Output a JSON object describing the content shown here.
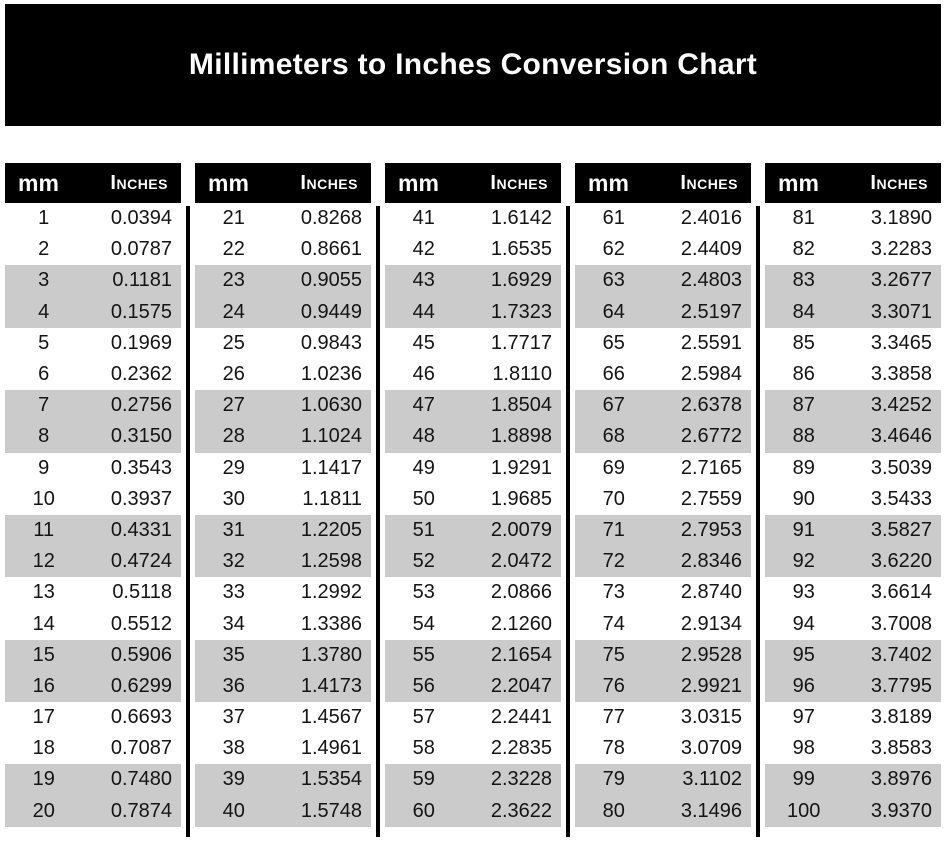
{
  "title": "Millimeters to Inches Conversion Chart",
  "colors": {
    "banner_background": "#000000",
    "header_background": "#000000",
    "stripe_gray": "#cbcbcb",
    "text": "#141414",
    "header_text": "#ffffff"
  },
  "table": {
    "header": {
      "mm_label": "mm",
      "inches_label": "Inches"
    },
    "groups": [
      {
        "rows": [
          {
            "mm": "1",
            "inches": "0.0394"
          },
          {
            "mm": "2",
            "inches": "0.0787"
          },
          {
            "mm": "3",
            "inches": "0.1181"
          },
          {
            "mm": "4",
            "inches": "0.1575"
          },
          {
            "mm": "5",
            "inches": "0.1969"
          },
          {
            "mm": "6",
            "inches": "0.2362"
          },
          {
            "mm": "7",
            "inches": "0.2756"
          },
          {
            "mm": "8",
            "inches": "0.3150"
          },
          {
            "mm": "9",
            "inches": "0.3543"
          },
          {
            "mm": "10",
            "inches": "0.3937"
          },
          {
            "mm": "11",
            "inches": "0.4331"
          },
          {
            "mm": "12",
            "inches": "0.4724"
          },
          {
            "mm": "13",
            "inches": "0.5118"
          },
          {
            "mm": "14",
            "inches": "0.5512"
          },
          {
            "mm": "15",
            "inches": "0.5906"
          },
          {
            "mm": "16",
            "inches": "0.6299"
          },
          {
            "mm": "17",
            "inches": "0.6693"
          },
          {
            "mm": "18",
            "inches": "0.7087"
          },
          {
            "mm": "19",
            "inches": "0.7480"
          },
          {
            "mm": "20",
            "inches": "0.7874"
          }
        ]
      },
      {
        "rows": [
          {
            "mm": "21",
            "inches": "0.8268"
          },
          {
            "mm": "22",
            "inches": "0.8661"
          },
          {
            "mm": "23",
            "inches": "0.9055"
          },
          {
            "mm": "24",
            "inches": "0.9449"
          },
          {
            "mm": "25",
            "inches": "0.9843"
          },
          {
            "mm": "26",
            "inches": "1.0236"
          },
          {
            "mm": "27",
            "inches": "1.0630"
          },
          {
            "mm": "28",
            "inches": "1.1024"
          },
          {
            "mm": "29",
            "inches": "1.1417"
          },
          {
            "mm": "30",
            "inches": "1.1811"
          },
          {
            "mm": "31",
            "inches": "1.2205"
          },
          {
            "mm": "32",
            "inches": "1.2598"
          },
          {
            "mm": "33",
            "inches": "1.2992"
          },
          {
            "mm": "34",
            "inches": "1.3386"
          },
          {
            "mm": "35",
            "inches": "1.3780"
          },
          {
            "mm": "36",
            "inches": "1.4173"
          },
          {
            "mm": "37",
            "inches": "1.4567"
          },
          {
            "mm": "38",
            "inches": "1.4961"
          },
          {
            "mm": "39",
            "inches": "1.5354"
          },
          {
            "mm": "40",
            "inches": "1.5748"
          }
        ]
      },
      {
        "rows": [
          {
            "mm": "41",
            "inches": "1.6142"
          },
          {
            "mm": "42",
            "inches": "1.6535"
          },
          {
            "mm": "43",
            "inches": "1.6929"
          },
          {
            "mm": "44",
            "inches": "1.7323"
          },
          {
            "mm": "45",
            "inches": "1.7717"
          },
          {
            "mm": "46",
            "inches": "1.8110"
          },
          {
            "mm": "47",
            "inches": "1.8504"
          },
          {
            "mm": "48",
            "inches": "1.8898"
          },
          {
            "mm": "49",
            "inches": "1.9291"
          },
          {
            "mm": "50",
            "inches": "1.9685"
          },
          {
            "mm": "51",
            "inches": "2.0079"
          },
          {
            "mm": "52",
            "inches": "2.0472"
          },
          {
            "mm": "53",
            "inches": "2.0866"
          },
          {
            "mm": "54",
            "inches": "2.1260"
          },
          {
            "mm": "55",
            "inches": "2.1654"
          },
          {
            "mm": "56",
            "inches": "2.2047"
          },
          {
            "mm": "57",
            "inches": "2.2441"
          },
          {
            "mm": "58",
            "inches": "2.2835"
          },
          {
            "mm": "59",
            "inches": "2.3228"
          },
          {
            "mm": "60",
            "inches": "2.3622"
          }
        ]
      },
      {
        "rows": [
          {
            "mm": "61",
            "inches": "2.4016"
          },
          {
            "mm": "62",
            "inches": "2.4409"
          },
          {
            "mm": "63",
            "inches": "2.4803"
          },
          {
            "mm": "64",
            "inches": "2.5197"
          },
          {
            "mm": "65",
            "inches": "2.5591"
          },
          {
            "mm": "66",
            "inches": "2.5984"
          },
          {
            "mm": "67",
            "inches": "2.6378"
          },
          {
            "mm": "68",
            "inches": "2.6772"
          },
          {
            "mm": "69",
            "inches": "2.7165"
          },
          {
            "mm": "70",
            "inches": "2.7559"
          },
          {
            "mm": "71",
            "inches": "2.7953"
          },
          {
            "mm": "72",
            "inches": "2.8346"
          },
          {
            "mm": "73",
            "inches": "2.8740"
          },
          {
            "mm": "74",
            "inches": "2.9134"
          },
          {
            "mm": "75",
            "inches": "2.9528"
          },
          {
            "mm": "76",
            "inches": "2.9921"
          },
          {
            "mm": "77",
            "inches": "3.0315"
          },
          {
            "mm": "78",
            "inches": "3.0709"
          },
          {
            "mm": "79",
            "inches": "3.1102"
          },
          {
            "mm": "80",
            "inches": "3.1496"
          }
        ]
      },
      {
        "rows": [
          {
            "mm": "81",
            "inches": "3.1890"
          },
          {
            "mm": "82",
            "inches": "3.2283"
          },
          {
            "mm": "83",
            "inches": "3.2677"
          },
          {
            "mm": "84",
            "inches": "3.3071"
          },
          {
            "mm": "85",
            "inches": "3.3465"
          },
          {
            "mm": "86",
            "inches": "3.3858"
          },
          {
            "mm": "87",
            "inches": "3.4252"
          },
          {
            "mm": "88",
            "inches": "3.4646"
          },
          {
            "mm": "89",
            "inches": "3.5039"
          },
          {
            "mm": "90",
            "inches": "3.5433"
          },
          {
            "mm": "91",
            "inches": "3.5827"
          },
          {
            "mm": "92",
            "inches": "3.6220"
          },
          {
            "mm": "93",
            "inches": "3.6614"
          },
          {
            "mm": "94",
            "inches": "3.7008"
          },
          {
            "mm": "95",
            "inches": "3.7402"
          },
          {
            "mm": "96",
            "inches": "3.7795"
          },
          {
            "mm": "97",
            "inches": "3.8189"
          },
          {
            "mm": "98",
            "inches": "3.8583"
          },
          {
            "mm": "99",
            "inches": "3.8976"
          },
          {
            "mm": "100",
            "inches": "3.9370"
          }
        ]
      }
    ]
  }
}
